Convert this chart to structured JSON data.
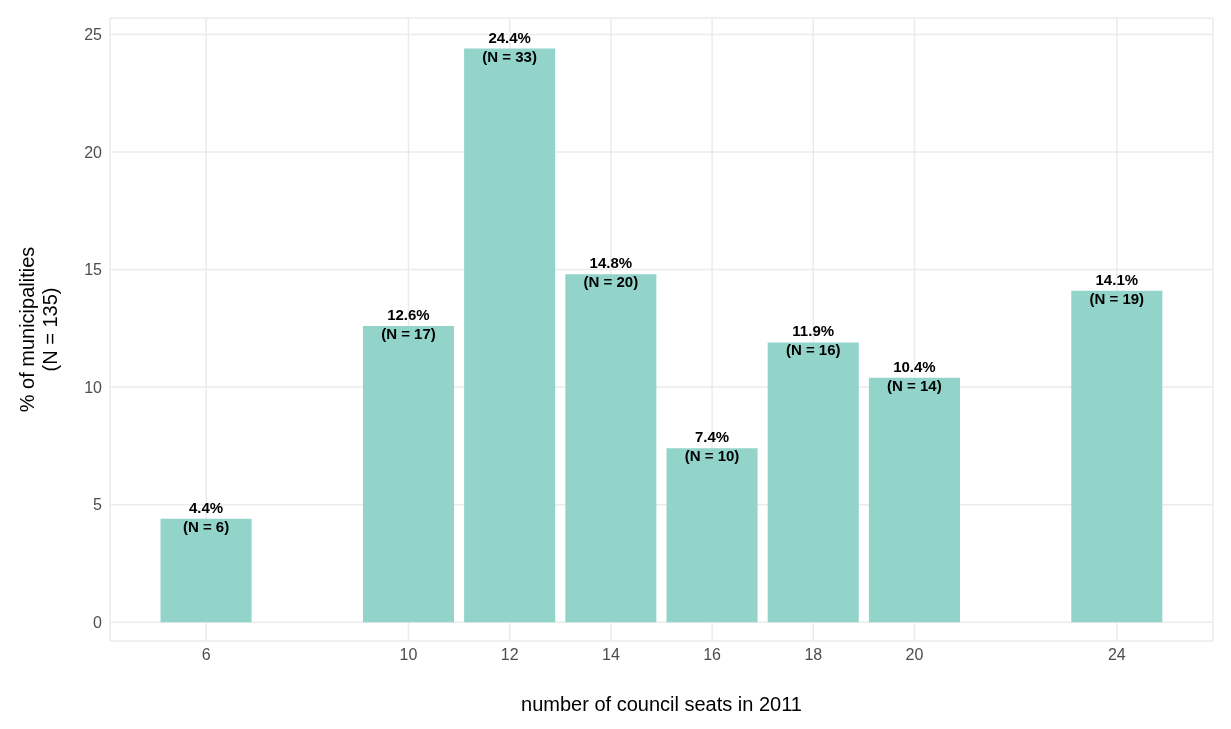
{
  "chart_data": {
    "type": "bar",
    "xlabel": "number of council seats in 2011",
    "ylabel": "% of municipalities\n(N = 135)",
    "x": [
      6,
      10,
      12,
      14,
      16,
      18,
      20,
      24
    ],
    "values": [
      4.4,
      12.6,
      24.4,
      14.8,
      7.4,
      11.9,
      10.4,
      14.1
    ],
    "value_labels": [
      "4.4%\n(N = 6)",
      "12.6%\n(N = 17)",
      "24.4%\n(N = 33)",
      "14.8%\n(N = 20)",
      "7.4%\n(N = 10)",
      "11.9%\n(N = 16)",
      "10.4%\n(N = 14)",
      "14.1%\n(N = 19)"
    ],
    "color": "#93d4ca",
    "xlim": [
      4.1,
      25.9
    ],
    "xticks": [
      6,
      10,
      12,
      14,
      16,
      18,
      20,
      24
    ],
    "ylim": [
      -0.8,
      25.7
    ],
    "yticks": [
      0,
      5,
      10,
      15,
      20,
      25
    ],
    "grid": true
  }
}
